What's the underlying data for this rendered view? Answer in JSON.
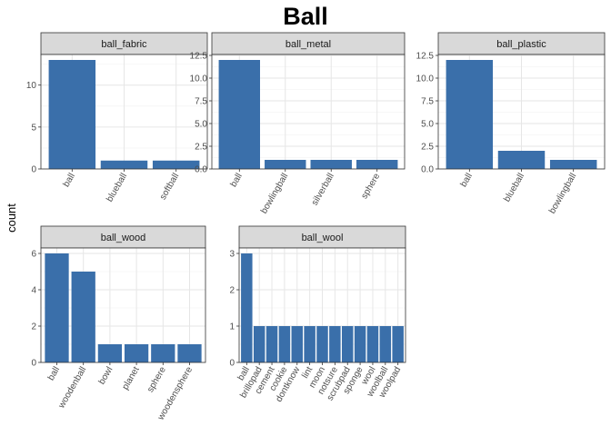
{
  "chart_data": {
    "type": "bar",
    "title": "Ball",
    "ylabel": "count",
    "xlabel": "",
    "bar_color": "#3a6faa",
    "grid": true,
    "facets": [
      {
        "name": "ball_fabric",
        "categories": [
          "ball",
          "blueball",
          "softball"
        ],
        "values": [
          13,
          1,
          1
        ],
        "ylim": [
          0,
          13.65
        ],
        "yticks": [
          0,
          5,
          10
        ],
        "ytick_labels": [
          "0",
          "5",
          "10"
        ]
      },
      {
        "name": "ball_metal",
        "categories": [
          "ball",
          "bowlingball",
          "silverball",
          "sphere"
        ],
        "values": [
          12,
          1,
          1,
          1
        ],
        "ylim": [
          0,
          12.6
        ],
        "yticks": [
          0,
          2.5,
          5,
          7.5,
          10,
          12.5
        ],
        "ytick_labels": [
          "0.0",
          "2.5",
          "5.0",
          "7.5",
          "10.0",
          "12.5"
        ]
      },
      {
        "name": "ball_plastic",
        "categories": [
          "ball",
          "blueball",
          "bowlingball"
        ],
        "values": [
          12,
          2,
          1
        ],
        "ylim": [
          0,
          12.6
        ],
        "yticks": [
          0,
          2.5,
          5,
          7.5,
          10,
          12.5
        ],
        "ytick_labels": [
          "0.0",
          "2.5",
          "5.0",
          "7.5",
          "10.0",
          "12.5"
        ]
      },
      {
        "name": "ball_wood",
        "categories": [
          "ball",
          "woodenball",
          "bowl",
          "planet",
          "sphere",
          "woodensphere"
        ],
        "values": [
          6,
          5,
          1,
          1,
          1,
          1
        ],
        "ylim": [
          0,
          6.3
        ],
        "yticks": [
          0,
          2,
          4,
          6
        ],
        "ytick_labels": [
          "0",
          "2",
          "4",
          "6"
        ]
      },
      {
        "name": "ball_wool",
        "categories": [
          "ball",
          "brillopad",
          "cement",
          "cookie",
          "dontknow",
          "lint",
          "moon",
          "notsure",
          "scrubpad",
          "sponge",
          "wool",
          "woolball",
          "woolpad"
        ],
        "values": [
          3,
          1,
          1,
          1,
          1,
          1,
          1,
          1,
          1,
          1,
          1,
          1,
          1
        ],
        "ylim": [
          0,
          3.15
        ],
        "yticks": [
          0,
          1,
          2,
          3
        ],
        "ytick_labels": [
          "0",
          "1",
          "2",
          "3"
        ]
      }
    ]
  }
}
